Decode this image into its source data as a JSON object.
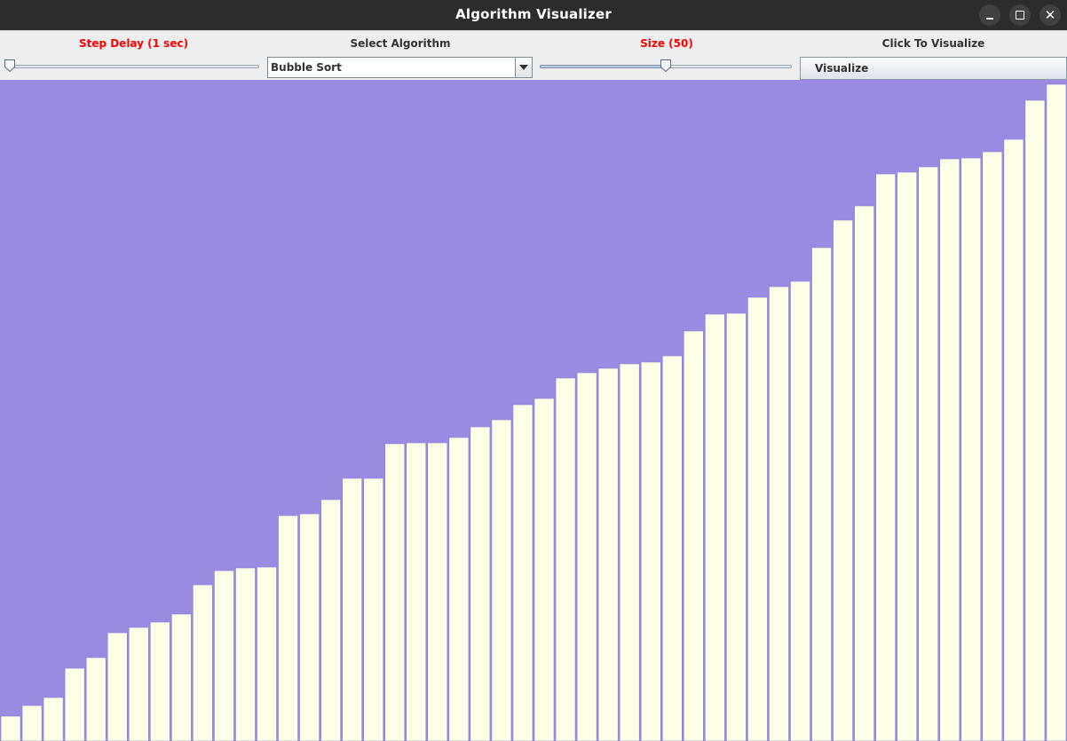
{
  "window": {
    "title": "Algorithm Visualizer"
  },
  "toolbar": {
    "step_delay_label": "Step Delay (1 sec)",
    "step_delay_fraction": 0.0,
    "select_algorithm_label": "Select Algorithm",
    "algorithm_selected": "Bubble Sort",
    "size_label": "Size (50)",
    "size_fraction": 0.5,
    "click_to_visualize_label": "Click To Visualize",
    "visualize_button_label": "Visualize"
  },
  "colors": {
    "background": "#9a8ae2",
    "bar_fill": "#ffffe8",
    "bar_edge": "#8b7dd3",
    "label_red": "#ff0000"
  },
  "chart_data": {
    "type": "bar",
    "array_size": 50,
    "ylim": [
      0,
      742
    ],
    "values": [
      28,
      40,
      49,
      82,
      94,
      122,
      128,
      134,
      143,
      176,
      192,
      195,
      196,
      254,
      256,
      272,
      296,
      296,
      335,
      336,
      336,
      342,
      354,
      362,
      379,
      386,
      409,
      415,
      420,
      425,
      427,
      434,
      462,
      481,
      482,
      500,
      512,
      518,
      556,
      587,
      603,
      639,
      641,
      647,
      656,
      657,
      664,
      678,
      722,
      740
    ]
  }
}
